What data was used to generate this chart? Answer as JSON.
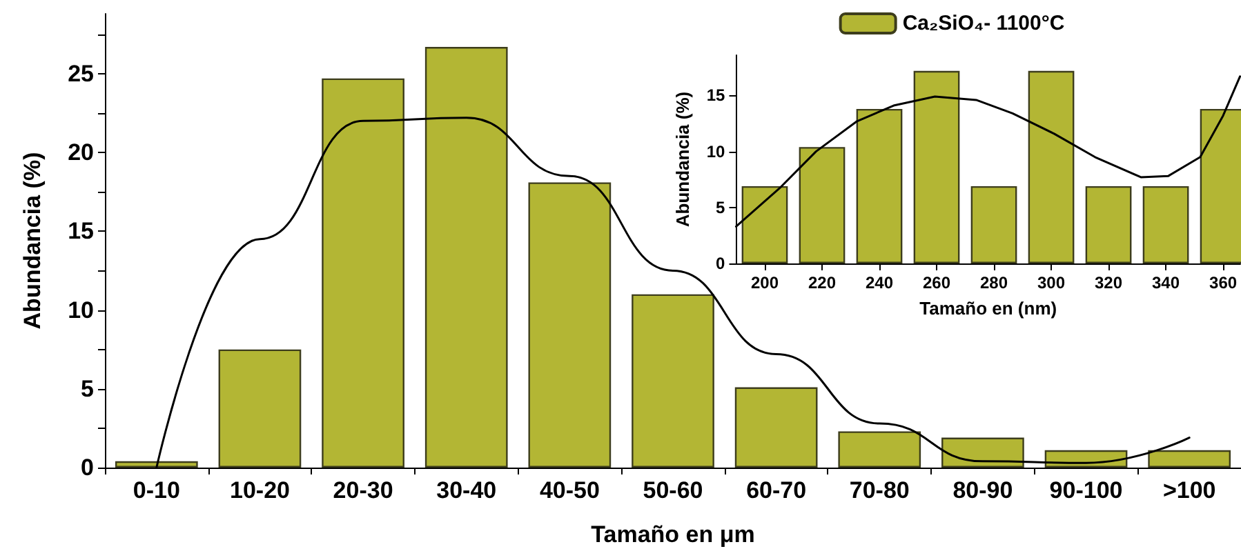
{
  "chart_data": [
    {
      "type": "bar",
      "xlabel": "Tamaño en μm",
      "ylabel": "Abundancia (%)",
      "categories": [
        "0-10",
        "10-20",
        "20-30",
        "30-40",
        "40-50",
        "50-60",
        "60-70",
        "70-80",
        "80-90",
        "90-100",
        ">100"
      ],
      "ylim": [
        0,
        28.8
      ],
      "yticks": [
        0,
        {
          "value": 2.5,
          "label": null
        },
        5,
        {
          "value": 7.5,
          "label": null
        },
        10,
        {
          "value": 12.5,
          "label": null
        },
        15,
        {
          "value": 17.5,
          "label": null
        },
        20,
        {
          "value": 22.5,
          "label": null
        },
        25,
        {
          "value": 27.5,
          "label": null
        }
      ],
      "legend": false,
      "series": [
        {
          "color": "#b3b634",
          "values": [
            0.4,
            7.5,
            24.7,
            26.7,
            18.1,
            11.0,
            5.1,
            2.3,
            1.9,
            1.1,
            1.1
          ]
        },
        {
          "type": "line",
          "color": "#000000",
          "marker": "none",
          "values": [
            0,
            14.5,
            22.0,
            22.2,
            18.5,
            12.5,
            7.2,
            2.8,
            0.4,
            0.3,
            1.9
          ]
        }
      ]
    },
    {
      "type": "bar",
      "xlabel": "Tamaño en (nm)",
      "ylabel": "Abundancia (%)",
      "x": [
        200,
        220,
        240,
        260,
        280,
        300,
        320,
        340,
        360
      ],
      "xlim": [
        190,
        366
      ],
      "xticks": [
        200,
        220,
        240,
        260,
        280,
        300,
        320,
        340,
        360
      ],
      "ylim": [
        0,
        18.6
      ],
      "yticks": [
        0,
        5,
        10,
        15
      ],
      "legend": "top",
      "series": [
        {
          "name": "Ca₂SiO₄- 1100°C",
          "color": "#b3b634",
          "values": [
            6.9,
            10.4,
            13.8,
            17.2,
            6.9,
            17.2,
            6.9,
            6.9,
            13.8
          ]
        },
        {
          "type": "line",
          "color": "#000000",
          "marker": "none",
          "x": [
            190,
            205.1,
            217.9,
            232.2,
            245,
            259.4,
            273.8,
            286.5,
            300.9,
            315.3,
            331.3,
            340.8,
            352,
            360,
            365.9
          ],
          "values": [
            3.3,
            6.7,
            10.0,
            12.7,
            14.1,
            14.9,
            14.6,
            13.4,
            11.6,
            9.5,
            7.7,
            7.8,
            9.5,
            13.2,
            16.7
          ]
        }
      ]
    }
  ]
}
